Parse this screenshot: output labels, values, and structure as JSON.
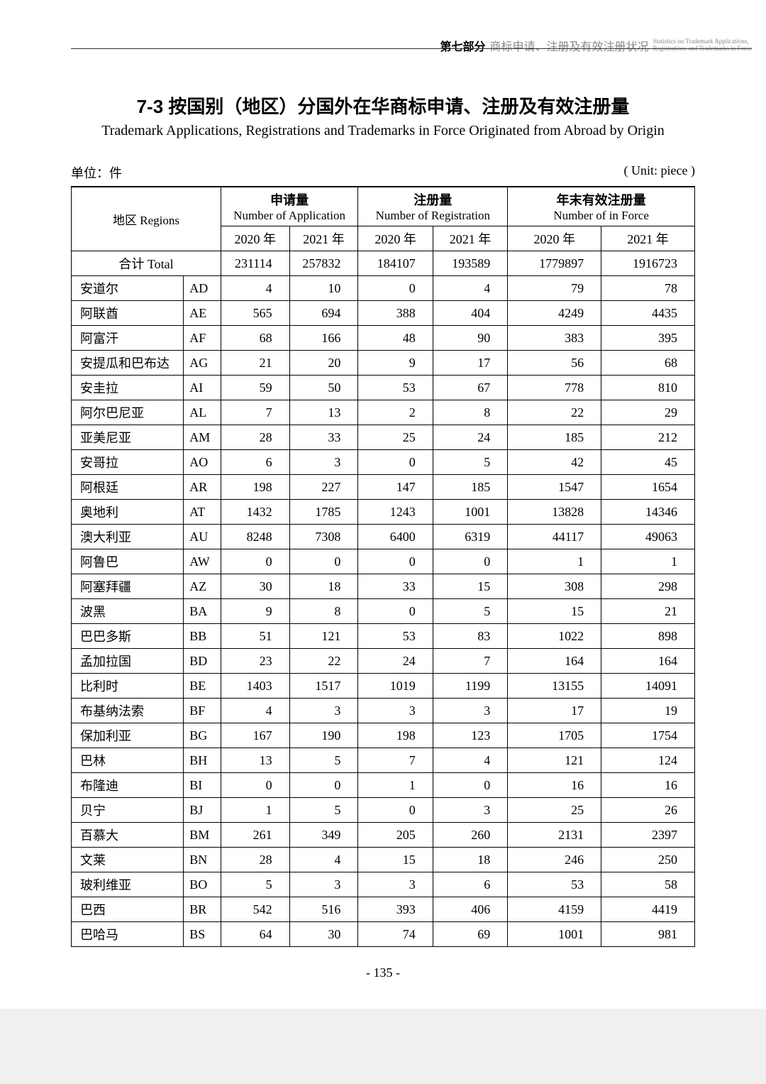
{
  "header": {
    "section_zh_bold": "第七部分",
    "section_zh_light": "商标申请、注册及有效注册状况",
    "section_en_line1": "Statistics on Trademark Applications,",
    "section_en_line2": "Registrations and Trademarks in Force"
  },
  "title": {
    "zh": "7-3  按国别（地区）分国外在华商标申请、注册及有效注册量",
    "en": "Trademark Applications, Registrations and Trademarks in Force Originated from Abroad by Origin"
  },
  "unit": {
    "left": "单位：件",
    "right": "( Unit: piece )"
  },
  "columns": {
    "regions_zh": "地区 Regions",
    "app_zh": "申请量",
    "app_en": "Number of Application",
    "reg_zh": "注册量",
    "reg_en": "Number of Registration",
    "force_zh": "年末有效注册量",
    "force_en": "Number of in Force",
    "y2020": "2020 年",
    "y2021": "2021 年",
    "total": "合计 Total",
    "widths": {
      "region_name": "18%",
      "region_code": "6%",
      "app20": "11%",
      "app21": "11%",
      "reg20": "12%",
      "reg21": "12%",
      "force20": "15%",
      "force21": "15%"
    }
  },
  "total_row": {
    "app20": "231114",
    "app21": "257832",
    "reg20": "184107",
    "reg21": "193589",
    "force20": "1779897",
    "force21": "1916723"
  },
  "rows": [
    {
      "name": "安道尔",
      "code": "AD",
      "app20": "4",
      "app21": "10",
      "reg20": "0",
      "reg21": "4",
      "force20": "79",
      "force21": "78"
    },
    {
      "name": "阿联酋",
      "code": "AE",
      "app20": "565",
      "app21": "694",
      "reg20": "388",
      "reg21": "404",
      "force20": "4249",
      "force21": "4435"
    },
    {
      "name": "阿富汗",
      "code": "AF",
      "app20": "68",
      "app21": "166",
      "reg20": "48",
      "reg21": "90",
      "force20": "383",
      "force21": "395"
    },
    {
      "name": "安提瓜和巴布达",
      "code": "AG",
      "app20": "21",
      "app21": "20",
      "reg20": "9",
      "reg21": "17",
      "force20": "56",
      "force21": "68"
    },
    {
      "name": "安圭拉",
      "code": "AI",
      "app20": "59",
      "app21": "50",
      "reg20": "53",
      "reg21": "67",
      "force20": "778",
      "force21": "810"
    },
    {
      "name": "阿尔巴尼亚",
      "code": "AL",
      "app20": "7",
      "app21": "13",
      "reg20": "2",
      "reg21": "8",
      "force20": "22",
      "force21": "29"
    },
    {
      "name": "亚美尼亚",
      "code": "AM",
      "app20": "28",
      "app21": "33",
      "reg20": "25",
      "reg21": "24",
      "force20": "185",
      "force21": "212"
    },
    {
      "name": "安哥拉",
      "code": "AO",
      "app20": "6",
      "app21": "3",
      "reg20": "0",
      "reg21": "5",
      "force20": "42",
      "force21": "45"
    },
    {
      "name": "阿根廷",
      "code": "AR",
      "app20": "198",
      "app21": "227",
      "reg20": "147",
      "reg21": "185",
      "force20": "1547",
      "force21": "1654"
    },
    {
      "name": "奥地利",
      "code": "AT",
      "app20": "1432",
      "app21": "1785",
      "reg20": "1243",
      "reg21": "1001",
      "force20": "13828",
      "force21": "14346"
    },
    {
      "name": "澳大利亚",
      "code": "AU",
      "app20": "8248",
      "app21": "7308",
      "reg20": "6400",
      "reg21": "6319",
      "force20": "44117",
      "force21": "49063"
    },
    {
      "name": "阿鲁巴",
      "code": "AW",
      "app20": "0",
      "app21": "0",
      "reg20": "0",
      "reg21": "0",
      "force20": "1",
      "force21": "1"
    },
    {
      "name": "阿塞拜疆",
      "code": "AZ",
      "app20": "30",
      "app21": "18",
      "reg20": "33",
      "reg21": "15",
      "force20": "308",
      "force21": "298"
    },
    {
      "name": "波黑",
      "code": "BA",
      "app20": "9",
      "app21": "8",
      "reg20": "0",
      "reg21": "5",
      "force20": "15",
      "force21": "21"
    },
    {
      "name": "巴巴多斯",
      "code": "BB",
      "app20": "51",
      "app21": "121",
      "reg20": "53",
      "reg21": "83",
      "force20": "1022",
      "force21": "898"
    },
    {
      "name": "孟加拉国",
      "code": "BD",
      "app20": "23",
      "app21": "22",
      "reg20": "24",
      "reg21": "7",
      "force20": "164",
      "force21": "164"
    },
    {
      "name": "比利时",
      "code": "BE",
      "app20": "1403",
      "app21": "1517",
      "reg20": "1019",
      "reg21": "1199",
      "force20": "13155",
      "force21": "14091"
    },
    {
      "name": "布基纳法索",
      "code": "BF",
      "app20": "4",
      "app21": "3",
      "reg20": "3",
      "reg21": "3",
      "force20": "17",
      "force21": "19"
    },
    {
      "name": "保加利亚",
      "code": "BG",
      "app20": "167",
      "app21": "190",
      "reg20": "198",
      "reg21": "123",
      "force20": "1705",
      "force21": "1754"
    },
    {
      "name": "巴林",
      "code": "BH",
      "app20": "13",
      "app21": "5",
      "reg20": "7",
      "reg21": "4",
      "force20": "121",
      "force21": "124"
    },
    {
      "name": "布隆迪",
      "code": "BI",
      "app20": "0",
      "app21": "0",
      "reg20": "1",
      "reg21": "0",
      "force20": "16",
      "force21": "16"
    },
    {
      "name": "贝宁",
      "code": "BJ",
      "app20": "1",
      "app21": "5",
      "reg20": "0",
      "reg21": "3",
      "force20": "25",
      "force21": "26"
    },
    {
      "name": "百慕大",
      "code": "BM",
      "app20": "261",
      "app21": "349",
      "reg20": "205",
      "reg21": "260",
      "force20": "2131",
      "force21": "2397"
    },
    {
      "name": "文莱",
      "code": "BN",
      "app20": "28",
      "app21": "4",
      "reg20": "15",
      "reg21": "18",
      "force20": "246",
      "force21": "250"
    },
    {
      "name": "玻利维亚",
      "code": "BO",
      "app20": "5",
      "app21": "3",
      "reg20": "3",
      "reg21": "6",
      "force20": "53",
      "force21": "58"
    },
    {
      "name": "巴西",
      "code": "BR",
      "app20": "542",
      "app21": "516",
      "reg20": "393",
      "reg21": "406",
      "force20": "4159",
      "force21": "4419"
    },
    {
      "name": "巴哈马",
      "code": "BS",
      "app20": "64",
      "app21": "30",
      "reg20": "74",
      "reg21": "69",
      "force20": "1001",
      "force21": "981"
    }
  ],
  "page_number": "- 135 -",
  "style": {
    "background_color": "#ffffff",
    "border_color": "#000000",
    "header_light_color": "#888888",
    "body_fontsize": 18,
    "title_fontsize": 26,
    "subtitle_fontsize": 20
  }
}
